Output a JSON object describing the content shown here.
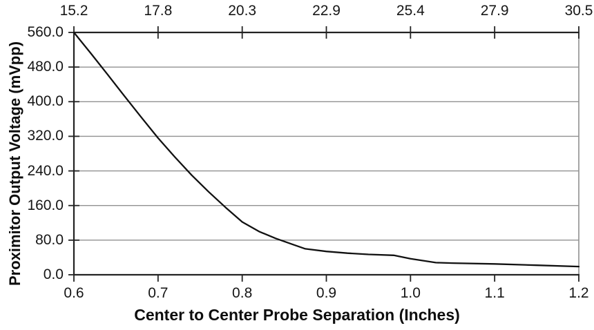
{
  "chart_data": {
    "type": "line",
    "title": "",
    "xlabel": "Center to Center Probe Separation (Inches)",
    "ylabel": "Proximitor Output Voltage (mVpp)",
    "xlim": [
      0.6,
      1.2
    ],
    "ylim": [
      0,
      560
    ],
    "grid": "horizontal",
    "legend": "none",
    "x_ticks": [
      "0.6",
      "0.7",
      "0.8",
      "0.9",
      "1.0",
      "1.1",
      "1.2"
    ],
    "x_tick_values": [
      0.6,
      0.7,
      0.8,
      0.9,
      1.0,
      1.1,
      1.2
    ],
    "top_axis_ticks": [
      "15.2",
      "17.8",
      "20.3",
      "22.9",
      "25.4",
      "27.9",
      "30.5"
    ],
    "y_ticks": [
      "560.0",
      "480.0",
      "400.0",
      "320.0",
      "240.0",
      "160.0",
      "80.0",
      "0.0"
    ],
    "y_tick_values": [
      560,
      480,
      400,
      320,
      240,
      160,
      80,
      0
    ],
    "series": [
      {
        "name": "Proximitor Output Voltage",
        "x": [
          0.6,
          0.62,
          0.64,
          0.66,
          0.68,
          0.7,
          0.72,
          0.74,
          0.76,
          0.78,
          0.8,
          0.82,
          0.84,
          0.86,
          0.875,
          0.9,
          0.925,
          0.95,
          0.98,
          1.0,
          1.03,
          1.05,
          1.1,
          1.15,
          1.2
        ],
        "y": [
          560,
          512,
          463,
          413,
          364,
          316,
          272,
          230,
          192,
          156,
          122,
          100,
          84,
          70,
          60,
          54,
          50,
          47,
          45,
          37,
          28,
          27,
          25,
          22,
          19
        ]
      }
    ],
    "colors": {
      "line": "#111111",
      "grid": "#909090",
      "axis": "#222222",
      "right_border": "#909090",
      "text": "#161616",
      "background": "#ffffff"
    }
  }
}
